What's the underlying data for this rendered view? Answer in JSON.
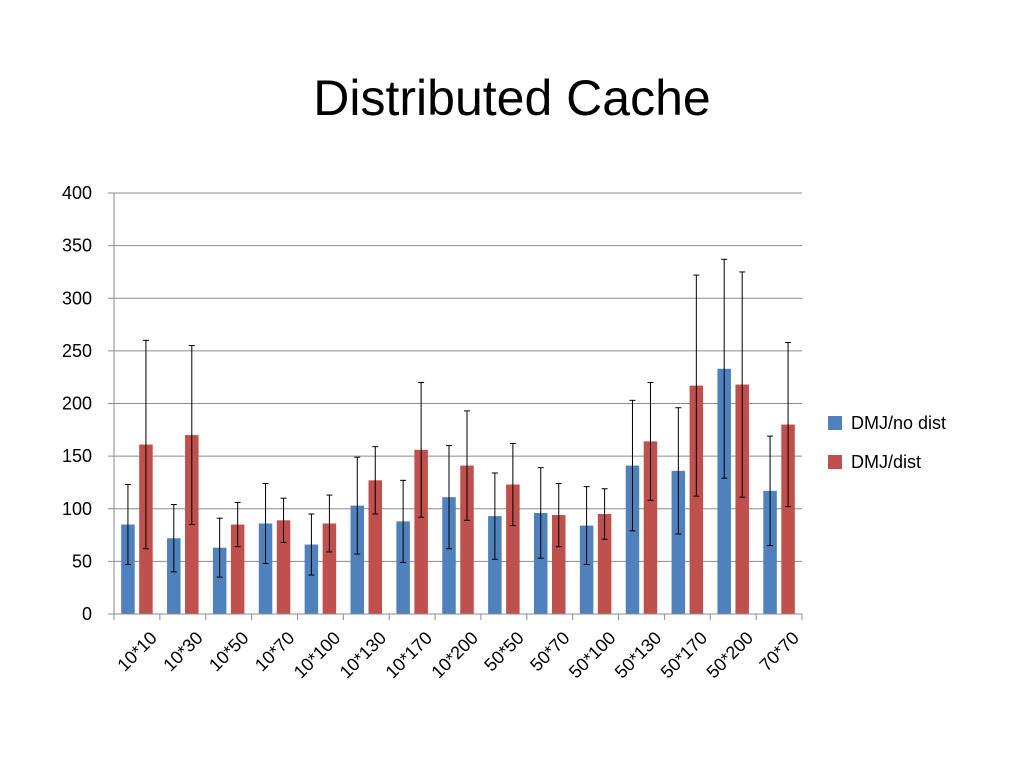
{
  "slide": {
    "title": "Distributed Cache"
  },
  "chart_data": {
    "type": "bar",
    "title": "",
    "xlabel": "",
    "ylabel": "",
    "ylim": [
      0,
      400
    ],
    "yticks": [
      0,
      50,
      100,
      150,
      200,
      250,
      300,
      350,
      400
    ],
    "grid": true,
    "legend_position": "right",
    "categories": [
      "10*10",
      "10*30",
      "10*50",
      "10*70",
      "10*100",
      "10*130",
      "10*170",
      "10*200",
      "50*50",
      "50*70",
      "50*100",
      "50*130",
      "50*170",
      "50*200",
      "70*70"
    ],
    "series": [
      {
        "name": "DMJ/no dist",
        "color": "#4F81BD",
        "values": [
          85,
          72,
          63,
          86,
          66,
          103,
          88,
          111,
          93,
          96,
          84,
          141,
          136,
          233,
          117
        ],
        "error": [
          38,
          32,
          28,
          38,
          29,
          46,
          39,
          49,
          41,
          43,
          37,
          62,
          60,
          104,
          52
        ]
      },
      {
        "name": "DMJ/dist",
        "color": "#C0504D",
        "values": [
          161,
          170,
          85,
          89,
          86,
          127,
          156,
          141,
          123,
          94,
          95,
          164,
          217,
          218,
          180
        ],
        "error": [
          99,
          85,
          21,
          21,
          27,
          32,
          64,
          52,
          39,
          30,
          24,
          56,
          105,
          107,
          78
        ]
      }
    ]
  }
}
